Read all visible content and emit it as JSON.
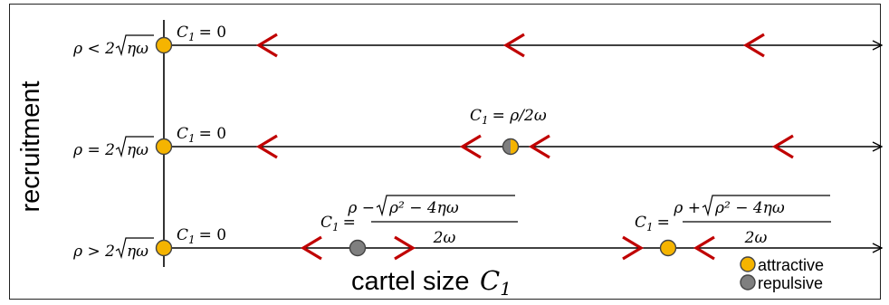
{
  "y_axis_label": "recruitment",
  "x_axis_label": "cartel size",
  "x_axis_symbol": "C",
  "x_axis_subscript": "1",
  "regimes": [
    {
      "condition_lhs": "ρ < 2",
      "condition_rad": "ηω",
      "origin_label": "= 0",
      "fixed_points": [],
      "arrows": [
        "left",
        "left",
        "left"
      ]
    },
    {
      "condition_lhs": "ρ = 2",
      "condition_rad": "ηω",
      "origin_label": "= 0",
      "fixed_points": [
        {
          "type": "half-stable",
          "formula": "= ρ/2ω"
        }
      ],
      "arrows": [
        "left",
        "left",
        "left",
        "left"
      ]
    },
    {
      "condition_lhs": "ρ > 2",
      "condition_rad": "ηω",
      "origin_label": "= 0",
      "fixed_points": [
        {
          "type": "repulsive",
          "numerator_lhs": "ρ −",
          "numerator_rad": "ρ² − 4ηω",
          "denominator": "2ω"
        },
        {
          "type": "attractive",
          "numerator_lhs": "ρ +",
          "numerator_rad": "ρ² − 4ηω",
          "denominator": "2ω"
        }
      ],
      "arrows": [
        "left",
        "right",
        "right",
        "left"
      ]
    }
  ],
  "legend": [
    {
      "label": "attractive",
      "color": "#f5b400"
    },
    {
      "label": "repulsive",
      "color": "#7f7f7f"
    }
  ],
  "colors": {
    "arrow": "#c00000",
    "attractive": "#f5b400",
    "repulsive": "#7f7f7f",
    "axis": "#000000"
  }
}
